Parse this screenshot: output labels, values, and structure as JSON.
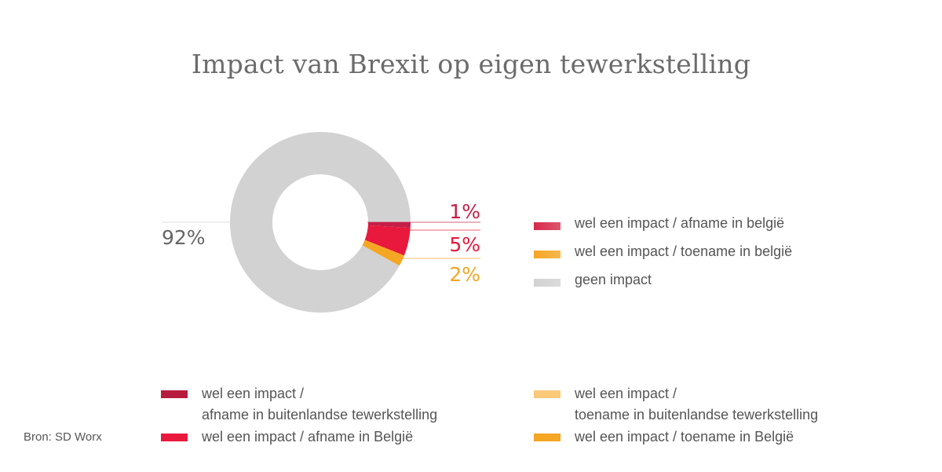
{
  "title": "Impact van Brexit op eigen tewerkstelling",
  "source": "Bron: SD Worx",
  "chart_data": {
    "type": "pie",
    "title": "Impact van Brexit op eigen tewerkstelling",
    "slices": [
      {
        "label": "wel een impact / afname in buitenlandse tewerkstelling",
        "value": 1,
        "display": "1%",
        "color": "#c41f47"
      },
      {
        "label": "wel een impact / afname in België",
        "value": 5,
        "display": "5%",
        "color": "#e8193c"
      },
      {
        "label": "wel een impact / toename in België",
        "value": 2,
        "display": "2%",
        "color": "#f5a623"
      },
      {
        "label": "geen impact",
        "value": 92,
        "display": "92%",
        "color": "#d2d2d2"
      }
    ],
    "legend_right": [
      {
        "label": "wel een impact / afname in belgië",
        "color": "#d62a4a"
      },
      {
        "label": "wel een impact / toename in belgië",
        "color": "#f5a623"
      },
      {
        "label": "geen impact",
        "color": "#d2d2d2"
      }
    ],
    "legend_bottom": [
      {
        "line1": "wel een impact /",
        "line2": "afname in buitenlandse tewerkstelling",
        "color": "#b71c3f"
      },
      {
        "line1": "wel een impact / afname in België",
        "line2": "",
        "color": "#e8193c"
      },
      {
        "line1": "wel een impact /",
        "line2": "toename in buitenlandse tewerkstelling",
        "color": "#fbc97a"
      },
      {
        "line1": "wel een impact / toename in België",
        "line2": "",
        "color": "#f5a623"
      }
    ]
  }
}
